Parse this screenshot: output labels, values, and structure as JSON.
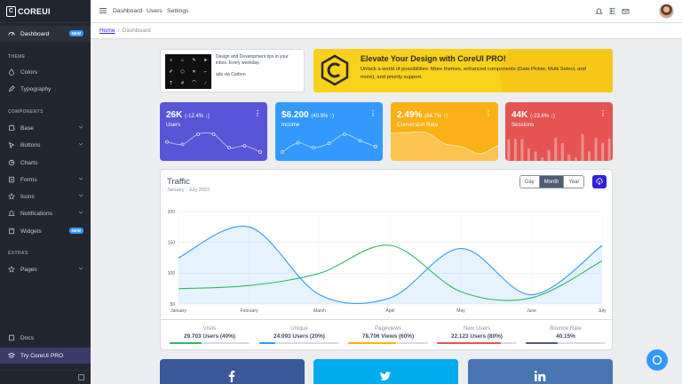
{
  "brand": {
    "name": "COREUI"
  },
  "sidebar": {
    "items": [
      {
        "label": "Dashboard",
        "badge": "NEW"
      },
      {
        "section": "THEME"
      },
      {
        "label": "Colors"
      },
      {
        "label": "Typography"
      },
      {
        "section": "COMPONENTS"
      },
      {
        "label": "Base"
      },
      {
        "label": "Buttons"
      },
      {
        "label": "Charts"
      },
      {
        "label": "Forms"
      },
      {
        "label": "Icons"
      },
      {
        "label": "Notifications"
      },
      {
        "label": "Widgets",
        "badge": "NEW"
      },
      {
        "section": "EXTRAS"
      },
      {
        "label": "Pages"
      },
      {
        "label": "Docs"
      },
      {
        "label": "Try CoreUI PRO"
      }
    ]
  },
  "header": {
    "nav": [
      "Dashboard",
      "Users",
      "Settings"
    ]
  },
  "breadcrumb": {
    "home": "Home",
    "current": "Dashboard"
  },
  "ad": {
    "text": "Design and Development tips in your inbox. Every weekday.",
    "via": "ads via Carbon"
  },
  "promo": {
    "title": "Elevate Your Design with CoreUI PRO!",
    "description": "Unlock a world of possibilities: More themes, enhanced components (Date Picker, Multi Select, and more), and priority support."
  },
  "stats": [
    {
      "value": "26K",
      "change": "(-12.4% ↓)",
      "label": "Users",
      "color": "#5856d6",
      "spark": [
        65,
        59,
        84,
        84,
        51,
        55,
        40
      ]
    },
    {
      "value": "$6.200",
      "change": "(40.9% ↑)",
      "label": "Income",
      "color": "#3399ff",
      "spark": [
        1,
        18,
        9,
        17,
        34,
        22,
        11
      ]
    },
    {
      "value": "2.49%",
      "change": "(84.7% ↑)",
      "label": "Conversion Rate",
      "color": "#f9b115",
      "spark": [
        78,
        81,
        80,
        45,
        34,
        12,
        40
      ]
    },
    {
      "value": "44K",
      "change": "(-23.6% ↓)",
      "label": "Sessions",
      "color": "#e55353",
      "spark": [
        78,
        81,
        80,
        45,
        34,
        12,
        40,
        85,
        65,
        23,
        12,
        98,
        34,
        84,
        67,
        82
      ]
    }
  ],
  "traffic": {
    "title": "Traffic",
    "subtitle": "January - July 2023",
    "periods": [
      "Day",
      "Month",
      "Year"
    ],
    "active_period": "Month"
  },
  "chart_data": {
    "type": "line",
    "categories": [
      "January",
      "February",
      "March",
      "April",
      "May",
      "June",
      "July"
    ],
    "ylim": [
      50,
      200
    ],
    "yticks": [
      "200",
      "150",
      "100",
      "50"
    ],
    "grid": true,
    "series": [
      {
        "color": "#3399ff",
        "fill": true,
        "values": [
          125,
          175,
          65,
          60,
          140,
          65,
          145
        ]
      },
      {
        "color": "#2eb85c",
        "fill": false,
        "values": [
          75,
          80,
          100,
          145,
          70,
          60,
          120
        ]
      }
    ]
  },
  "footer_stats": [
    {
      "title": "Visits",
      "value": "29.703 Users (40%)",
      "color": "#2eb85c",
      "progress": 40
    },
    {
      "title": "Unique",
      "value": "24.093 Users (20%)",
      "color": "#3399ff",
      "progress": 20
    },
    {
      "title": "Pageviews",
      "value": "78.706 Views (60%)",
      "color": "#f9b115",
      "progress": 60
    },
    {
      "title": "New Users",
      "value": "22.123 Users (80%)",
      "color": "#e55353",
      "progress": 80
    },
    {
      "title": "Bounce Rate",
      "value": "40.15%",
      "color": "#4f5d73",
      "progress": 40
    }
  ],
  "social": [
    {
      "name": "facebook-icon",
      "color": "#3b5998"
    },
    {
      "name": "twitter-icon",
      "color": "#00aced"
    },
    {
      "name": "linkedin-icon",
      "color": "#4875b4"
    }
  ]
}
